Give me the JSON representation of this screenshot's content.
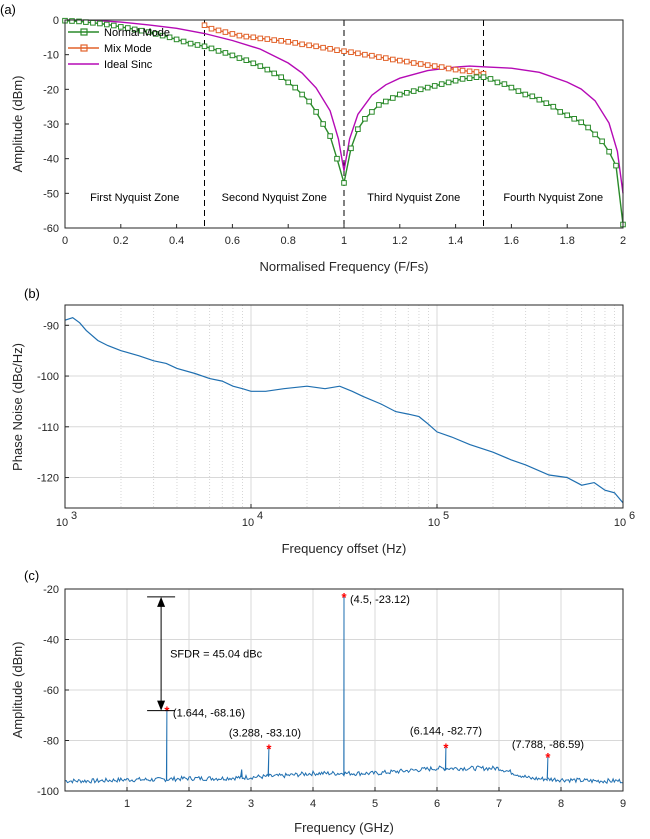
{
  "colors": {
    "normal": "#2a8a2a",
    "mix": "#e2622a",
    "sinc": "#b50ab5",
    "blue": "#1f6fb0",
    "star": "#ff0000",
    "grid": "#d8d8d8",
    "axis": "#262626"
  },
  "chart_data": [
    {
      "id": "a",
      "type": "line",
      "panel_label": "(a)",
      "xlabel": "Normalised Frequency (F/Fs)",
      "ylabel": "Amplitude (dBm)",
      "xlim": [
        0,
        2
      ],
      "ylim": [
        -60,
        0
      ],
      "xticks": [
        0,
        0.2,
        0.4,
        0.6,
        0.8,
        1,
        1.2,
        1.4,
        1.6,
        1.8,
        2
      ],
      "xtick_labels": [
        "0",
        "0.2",
        "0.4",
        "0.6",
        "0.8",
        "1",
        "1.2",
        "1.4",
        "1.6",
        "1.8",
        "2"
      ],
      "yticks": [
        0,
        -10,
        -20,
        -30,
        -40,
        -50,
        -60
      ],
      "ytick_labels": [
        "0",
        "-10",
        "-20",
        "-30",
        "-40",
        "-50",
        "-60"
      ],
      "grid": false,
      "legend_position": "top-left",
      "zone_dividers": [
        0.5,
        1,
        1.5
      ],
      "zones": [
        {
          "label": "First Nyquist Zone",
          "x": 0.25
        },
        {
          "label": "Second Nyquist Zone",
          "x": 0.75
        },
        {
          "label": "Third Nyquist Zone",
          "x": 1.25
        },
        {
          "label": "Fourth Nyquist Zone",
          "x": 1.75
        }
      ],
      "zone_label_y": -51,
      "series": [
        {
          "name": "Normal Mode",
          "color": "#2a8a2a",
          "marker": "square",
          "x": [
            0,
            0.025,
            0.05,
            0.075,
            0.1,
            0.125,
            0.15,
            0.175,
            0.2,
            0.225,
            0.25,
            0.275,
            0.3,
            0.325,
            0.35,
            0.375,
            0.4,
            0.425,
            0.45,
            0.475,
            0.5,
            0.525,
            0.55,
            0.575,
            0.6,
            0.625,
            0.65,
            0.675,
            0.7,
            0.725,
            0.75,
            0.775,
            0.8,
            0.825,
            0.85,
            0.875,
            0.9,
            0.925,
            0.95,
            0.975,
            1,
            1.025,
            1.05,
            1.075,
            1.1,
            1.125,
            1.15,
            1.175,
            1.2,
            1.225,
            1.25,
            1.275,
            1.3,
            1.325,
            1.35,
            1.375,
            1.4,
            1.425,
            1.45,
            1.475,
            1.5,
            1.525,
            1.55,
            1.575,
            1.6,
            1.625,
            1.65,
            1.675,
            1.7,
            1.725,
            1.75,
            1.775,
            1.8,
            1.825,
            1.85,
            1.875,
            1.9,
            1.925,
            1.95,
            1.975,
            2
          ],
          "y": [
            -0.2,
            -0.3,
            -0.4,
            -0.6,
            -0.8,
            -1.0,
            -1.3,
            -1.6,
            -2.0,
            -2.3,
            -2.7,
            -3.1,
            -3.5,
            -4.0,
            -4.5,
            -5.0,
            -5.6,
            -6.2,
            -6.8,
            -7.2,
            -7.6,
            -8.2,
            -8.9,
            -9.5,
            -10.2,
            -11.0,
            -11.6,
            -12.5,
            -13.3,
            -14.3,
            -15.4,
            -16.5,
            -18.0,
            -19.5,
            -21.5,
            -23.5,
            -26.5,
            -30.0,
            -33.5,
            -40.0,
            -47.0,
            -37.0,
            -31.5,
            -28.5,
            -26.5,
            -24.5,
            -23.5,
            -22.5,
            -21.5,
            -21.0,
            -20.5,
            -20.0,
            -19.5,
            -19.0,
            -18.5,
            -18.0,
            -17.5,
            -17.0,
            -16.8,
            -16.5,
            -16.5,
            -17.0,
            -18.0,
            -18.5,
            -19.5,
            -20.5,
            -21.5,
            -22.0,
            -23.0,
            -24.0,
            -25.0,
            -26.5,
            -27.5,
            -28.5,
            -29.5,
            -31.0,
            -33.0,
            -35.0,
            -38.0,
            -42.0,
            -59.0
          ]
        },
        {
          "name": "Mix Mode",
          "color": "#e2622a",
          "marker": "square",
          "x": [
            0.5,
            0.525,
            0.55,
            0.575,
            0.6,
            0.625,
            0.65,
            0.675,
            0.7,
            0.725,
            0.75,
            0.775,
            0.8,
            0.825,
            0.85,
            0.875,
            0.9,
            0.925,
            0.95,
            0.975,
            1,
            1.025,
            1.05,
            1.075,
            1.1,
            1.125,
            1.15,
            1.175,
            1.2,
            1.225,
            1.25,
            1.275,
            1.3,
            1.325,
            1.35,
            1.375,
            1.4,
            1.425,
            1.45,
            1.475,
            1.5
          ],
          "y": [
            -1.5,
            -2.5,
            -3.0,
            -3.5,
            -4.0,
            -4.5,
            -4.8,
            -5.0,
            -5.3,
            -5.5,
            -5.8,
            -6.0,
            -6.3,
            -6.6,
            -7.0,
            -7.3,
            -7.6,
            -8.0,
            -8.3,
            -8.7,
            -9.0,
            -9.3,
            -9.6,
            -10.0,
            -10.3,
            -10.7,
            -11.0,
            -11.4,
            -11.7,
            -12.0,
            -12.4,
            -12.7,
            -13.0,
            -13.3,
            -13.6,
            -14.0,
            -14.3,
            -14.6,
            -14.8,
            -15.0,
            -15.5
          ]
        },
        {
          "name": "Ideal Sinc",
          "color": "#b50ab5",
          "marker": "none",
          "x": [
            0,
            0.1,
            0.2,
            0.3,
            0.4,
            0.5,
            0.6,
            0.7,
            0.8,
            0.85,
            0.9,
            0.95,
            0.98,
            1,
            1.02,
            1.05,
            1.1,
            1.15,
            1.2,
            1.3,
            1.4,
            1.45,
            1.5,
            1.6,
            1.7,
            1.8,
            1.85,
            1.9,
            1.95,
            1.98,
            2
          ],
          "y": [
            0,
            -0.1,
            -0.6,
            -1.4,
            -2.4,
            -3.9,
            -5.9,
            -8.4,
            -12.4,
            -15.3,
            -19.6,
            -26.2,
            -34.3,
            -43.5,
            -34.3,
            -27.2,
            -21.7,
            -18.7,
            -16.8,
            -14.6,
            -13.6,
            -13.3,
            -13.5,
            -13.9,
            -15.1,
            -17.9,
            -19.9,
            -23.3,
            -29.7,
            -37.9,
            -50.0
          ]
        }
      ]
    },
    {
      "id": "b",
      "type": "line",
      "panel_label": "(b)",
      "xlabel": "Frequency offset (Hz)",
      "ylabel": "Phase Noise (dBc/Hz)",
      "xscale": "log",
      "xlim": [
        1000,
        1000000
      ],
      "ylim": [
        -126,
        -86
      ],
      "xtick_labels": [
        {
          "base": "10",
          "exp": "3"
        },
        {
          "base": "10",
          "exp": "4"
        },
        {
          "base": "10",
          "exp": "5"
        },
        {
          "base": "10",
          "exp": "6"
        }
      ],
      "yticks": [
        -90,
        -100,
        -110,
        -120
      ],
      "ytick_labels": [
        "-90",
        "-100",
        "-110",
        "-120"
      ],
      "grid": true,
      "series": [
        {
          "color": "#1f6fb0",
          "x": [
            1000,
            1100,
            1200,
            1300,
            1500,
            1700,
            2000,
            2500,
            3000,
            3500,
            4000,
            5000,
            6000,
            7000,
            8000,
            9000,
            10000,
            12000,
            15000,
            20000,
            25000,
            30000,
            35000,
            40000,
            50000,
            60000,
            70000,
            80000,
            90000,
            100000,
            120000,
            150000,
            200000,
            250000,
            300000,
            400000,
            500000,
            600000,
            700000,
            800000,
            900000,
            1000000
          ],
          "y": [
            -89,
            -88.5,
            -89.5,
            -91,
            -93,
            -94,
            -95,
            -96,
            -97,
            -97.5,
            -98.5,
            -99.5,
            -100.5,
            -101,
            -102,
            -102.5,
            -103,
            -103,
            -102.5,
            -102,
            -102.5,
            -102,
            -103,
            -104,
            -105.5,
            -107,
            -107.5,
            -108,
            -109.5,
            -111,
            -112,
            -113.5,
            -115,
            -116.5,
            -117.5,
            -119.5,
            -120,
            -121.5,
            -121,
            -122.5,
            -123,
            -125
          ]
        }
      ]
    },
    {
      "id": "c",
      "type": "line",
      "panel_label": "(c)",
      "xlabel": "Frequency (GHz)",
      "ylabel": "Amplitude (dBm)",
      "xlim": [
        0,
        9
      ],
      "ylim": [
        -100,
        -20
      ],
      "xticks": [
        1,
        2,
        3,
        4,
        5,
        6,
        7,
        8,
        9
      ],
      "xtick_labels": [
        "1",
        "2",
        "3",
        "4",
        "5",
        "6",
        "7",
        "8",
        "9"
      ],
      "yticks": [
        -20,
        -40,
        -60,
        -80,
        -100
      ],
      "ytick_labels": [
        "-20",
        "-40",
        "-60",
        "-80",
        "-100"
      ],
      "grid": true,
      "noise_floor": {
        "x": [
          0,
          0.5,
          1,
          1.5,
          2,
          2.5,
          3,
          3.5,
          4,
          4.5,
          5,
          5.5,
          6,
          6.5,
          7,
          7.5,
          8,
          8.5,
          9
        ],
        "y": [
          -96,
          -96,
          -95.5,
          -95.5,
          -95,
          -95,
          -94.5,
          -94,
          -93,
          -93,
          -93,
          -92,
          -91,
          -91,
          -91,
          -95,
          -95.5,
          -96,
          -96
        ]
      },
      "spurs": [
        {
          "x": 1.644,
          "y": -68.16,
          "label": "(1.644, -68.16)"
        },
        {
          "x": 2.85,
          "y": -91.5,
          "label": ""
        },
        {
          "x": 3.288,
          "y": -83.1,
          "label": "(3.288, -83.10)"
        },
        {
          "x": 4.5,
          "y": -23.12,
          "label": "(4.5, -23.12)"
        },
        {
          "x": 6.144,
          "y": -82.77,
          "label": "(6.144, -82.77)"
        },
        {
          "x": 7.788,
          "y": -86.59,
          "label": "(7.788, -86.59)"
        }
      ],
      "markers": [
        {
          "x": 1.644,
          "y": -68.16
        },
        {
          "x": 3.288,
          "y": -83.1
        },
        {
          "x": 4.5,
          "y": -23.12
        },
        {
          "x": 6.144,
          "y": -82.77
        },
        {
          "x": 7.788,
          "y": -86.59
        }
      ],
      "sfdr": {
        "label": "SFDR = 45.04 dBc",
        "top": -23.12,
        "bottom": -68.16,
        "arrow_x": 1.55
      }
    }
  ]
}
